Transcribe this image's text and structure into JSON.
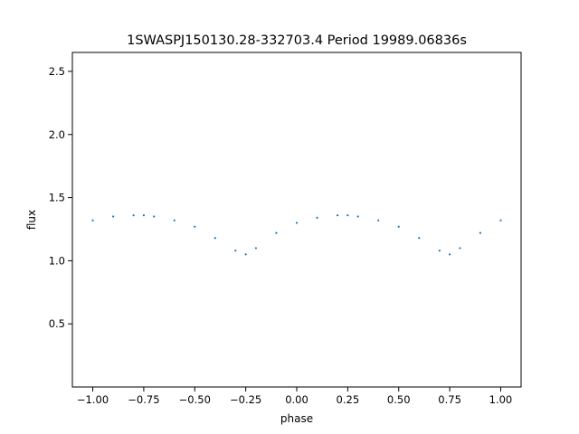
{
  "chart_data": {
    "type": "scatter",
    "title": "1SWASPJ150130.28-332703.4 Period 19989.06836s",
    "xlabel": "phase",
    "ylabel": "flux",
    "xlim": [
      -1.1,
      1.1
    ],
    "ylim": [
      0.0,
      2.65
    ],
    "x_ticks": [
      -1.0,
      -0.75,
      -0.5,
      -0.25,
      0.0,
      0.25,
      0.5,
      0.75,
      1.0
    ],
    "x_tick_labels": [
      "−1.00",
      "−0.75",
      "−0.50",
      "−0.25",
      "0.00",
      "0.25",
      "0.50",
      "0.75",
      "1.00"
    ],
    "y_ticks": [
      0.5,
      1.0,
      1.5,
      2.0,
      2.5
    ],
    "y_tick_labels": [
      "0.5",
      "1.0",
      "1.5",
      "2.0",
      "2.5"
    ],
    "grid": false,
    "legend": "none",
    "series": [
      {
        "color": "#1f77b4",
        "marker_size": 1,
        "x": [
          -1.0,
          -0.9,
          -0.8,
          -0.75,
          -0.7,
          -0.6,
          -0.5,
          -0.4,
          -0.3,
          -0.25,
          -0.2,
          -0.1,
          0.0,
          0.1,
          0.2,
          0.25,
          0.3,
          0.4,
          0.5,
          0.6,
          0.7,
          0.75,
          0.8,
          0.9,
          1.0
        ],
        "y": [
          1.32,
          1.35,
          1.36,
          1.36,
          1.35,
          1.32,
          1.27,
          1.18,
          1.08,
          1.05,
          1.1,
          1.22,
          1.3,
          1.34,
          1.36,
          1.36,
          1.35,
          1.32,
          1.27,
          1.18,
          1.08,
          1.05,
          1.1,
          1.22,
          1.32
        ]
      }
    ]
  }
}
